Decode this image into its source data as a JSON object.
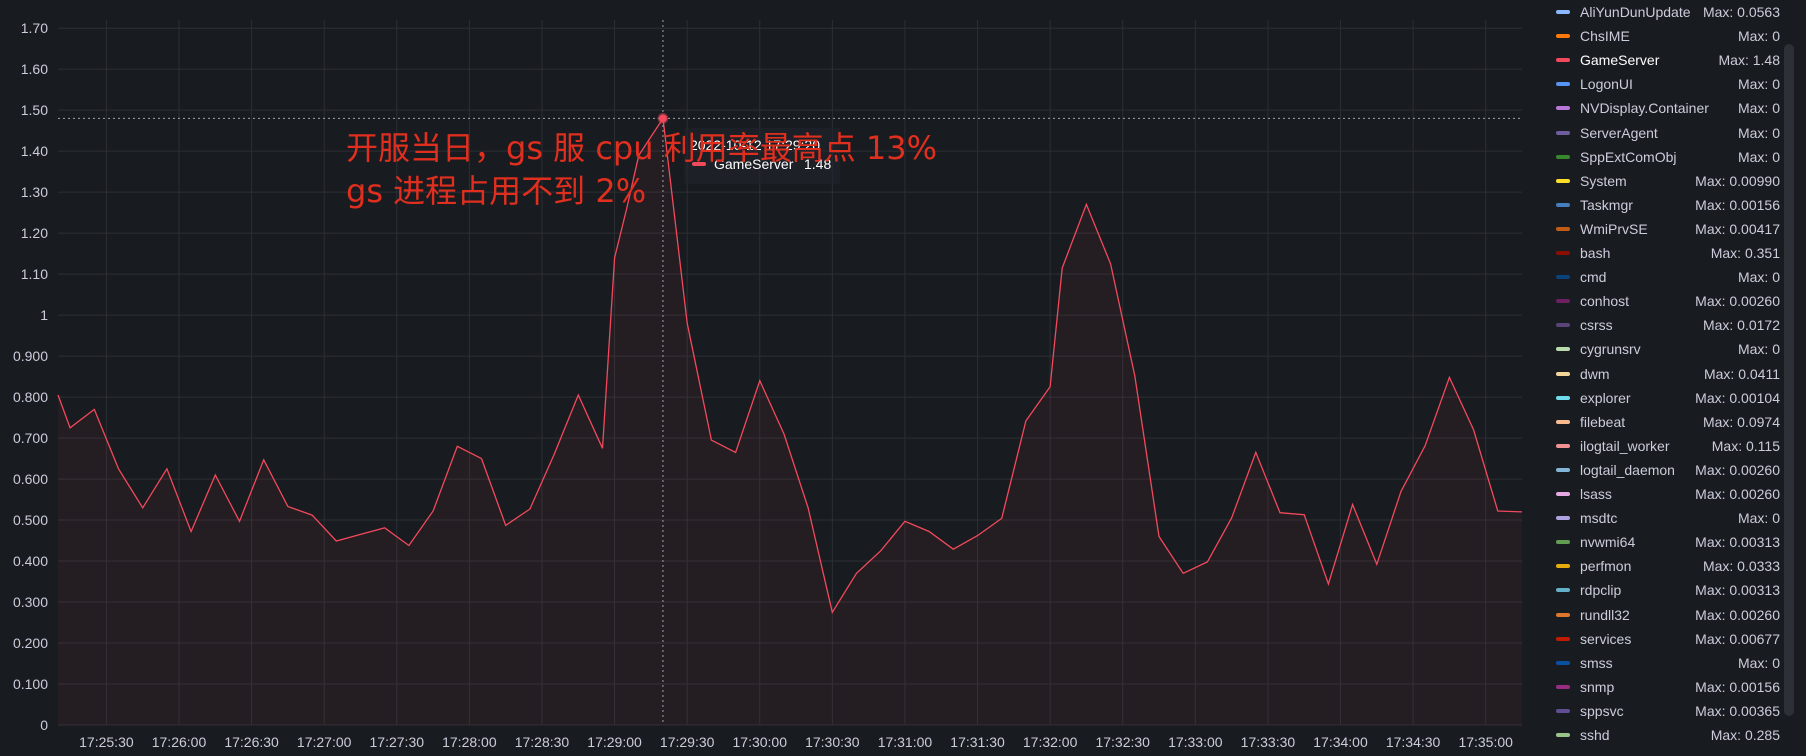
{
  "chart_data": {
    "type": "line",
    "y_ticks": [
      "0",
      "0.100",
      "0.200",
      "0.300",
      "0.400",
      "0.500",
      "0.600",
      "0.700",
      "0.800",
      "0.900",
      "1",
      "1.10",
      "1.20",
      "1.30",
      "1.40",
      "1.50",
      "1.60",
      "1.70"
    ],
    "ylim": [
      0,
      1.72
    ],
    "x_ticks": [
      "17:25:30",
      "17:26:00",
      "17:26:30",
      "17:27:00",
      "17:27:30",
      "17:28:00",
      "17:28:30",
      "17:29:00",
      "17:29:30",
      "17:30:00",
      "17:30:30",
      "17:31:00",
      "17:31:30",
      "17:32:00",
      "17:32:30",
      "17:33:00",
      "17:33:30",
      "17:34:00",
      "17:34:30",
      "17:35:00"
    ],
    "x_range": [
      "17:25:10",
      "17:35:15"
    ],
    "grid": true,
    "legend_position": "right",
    "series": [
      {
        "name": "GameServer",
        "color": "#f2495c",
        "x": [
          "17:25:10",
          "17:25:15",
          "17:25:25",
          "17:25:35",
          "17:25:45",
          "17:25:55",
          "17:26:05",
          "17:26:15",
          "17:26:25",
          "17:26:35",
          "17:26:45",
          "17:26:55",
          "17:27:05",
          "17:27:15",
          "17:27:25",
          "17:27:35",
          "17:27:45",
          "17:27:55",
          "17:28:05",
          "17:28:15",
          "17:28:25",
          "17:28:35",
          "17:28:45",
          "17:28:55",
          "17:29:00",
          "17:29:05",
          "17:29:10",
          "17:29:20",
          "17:29:30",
          "17:29:40",
          "17:29:50",
          "17:30:00",
          "17:30:10",
          "17:30:20",
          "17:30:30",
          "17:30:40",
          "17:30:50",
          "17:31:00",
          "17:31:10",
          "17:31:20",
          "17:31:30",
          "17:31:40",
          "17:31:50",
          "17:32:00",
          "17:32:05",
          "17:32:15",
          "17:32:25",
          "17:32:35",
          "17:32:45",
          "17:32:55",
          "17:33:05",
          "17:33:15",
          "17:33:25",
          "17:33:35",
          "17:33:45",
          "17:33:55",
          "17:34:05",
          "17:34:15",
          "17:34:25",
          "17:34:35",
          "17:34:45",
          "17:34:55",
          "17:35:05",
          "17:35:15"
        ],
        "y": [
          0.805,
          0.725,
          0.77,
          0.625,
          0.53,
          0.625,
          0.472,
          0.61,
          0.497,
          0.647,
          0.533,
          0.512,
          0.449,
          0.465,
          0.481,
          0.438,
          0.522,
          0.68,
          0.65,
          0.487,
          0.527,
          0.66,
          0.805,
          0.675,
          1.14,
          1.26,
          1.39,
          1.48,
          0.98,
          0.695,
          0.665,
          0.84,
          0.71,
          0.53,
          0.275,
          0.37,
          0.425,
          0.497,
          0.472,
          0.429,
          0.462,
          0.504,
          0.742,
          0.825,
          1.115,
          1.27,
          1.125,
          0.852,
          0.46,
          0.37,
          0.398,
          0.505,
          0.665,
          0.518,
          0.513,
          0.344,
          0.538,
          0.392,
          0.57,
          0.682,
          0.848,
          0.72,
          0.522,
          0.52
        ]
      }
    ]
  },
  "hover": {
    "time": "2022-10-12 17:29:20",
    "time_value": "17:29:20",
    "series": "GameServer",
    "value": "1.48",
    "value_num": 1.48
  },
  "annotation": {
    "line1": "开服当日，gs 服 cpu 利用率最高点 13%",
    "line2": "gs 进程占用不到 2%"
  },
  "legend": [
    {
      "name": "AliYunDunUpdate",
      "max": "Max: 0.0563",
      "color": "#8ab8ff"
    },
    {
      "name": "ChsIME",
      "max": "Max: 0",
      "color": "#ff780a"
    },
    {
      "name": "GameServer",
      "max": "Max: 1.48",
      "color": "#f2495c",
      "active": true
    },
    {
      "name": "LogonUI",
      "max": "Max: 0",
      "color": "#5794f2"
    },
    {
      "name": "NVDisplay.Container",
      "max": "Max: 0",
      "color": "#b877d9"
    },
    {
      "name": "ServerAgent",
      "max": "Max: 0",
      "color": "#705da0"
    },
    {
      "name": "SppExtComObj",
      "max": "Max: 0",
      "color": "#37872d"
    },
    {
      "name": "System",
      "max": "Max: 0.00990",
      "color": "#fade2a"
    },
    {
      "name": "Taskmgr",
      "max": "Max: 0.00156",
      "color": "#447ebc"
    },
    {
      "name": "WmiPrvSE",
      "max": "Max: 0.00417",
      "color": "#c15c17"
    },
    {
      "name": "bash",
      "max": "Max: 0.351",
      "color": "#890f02"
    },
    {
      "name": "cmd",
      "max": "Max: 0",
      "color": "#0a437c"
    },
    {
      "name": "conhost",
      "max": "Max: 0.00260",
      "color": "#6d1f62"
    },
    {
      "name": "csrss",
      "max": "Max: 0.0172",
      "color": "#584477"
    },
    {
      "name": "cygrunsrv",
      "max": "Max: 0",
      "color": "#b7dbab"
    },
    {
      "name": "dwm",
      "max": "Max: 0.0411",
      "color": "#f4d598"
    },
    {
      "name": "explorer",
      "max": "Max: 0.00104",
      "color": "#70dbed"
    },
    {
      "name": "filebeat",
      "max": "Max: 0.0974",
      "color": "#f9ba8f"
    },
    {
      "name": "ilogtail_worker",
      "max": "Max: 0.115",
      "color": "#f29191"
    },
    {
      "name": "logtail_daemon",
      "max": "Max: 0.00260",
      "color": "#82b5d8"
    },
    {
      "name": "lsass",
      "max": "Max: 0.00260",
      "color": "#e5a8e2"
    },
    {
      "name": "msdtc",
      "max": "Max: 0",
      "color": "#aea2e0"
    },
    {
      "name": "nvwmi64",
      "max": "Max: 0.00313",
      "color": "#629e51"
    },
    {
      "name": "perfmon",
      "max": "Max: 0.0333",
      "color": "#e5ac0e"
    },
    {
      "name": "rdpclip",
      "max": "Max: 0.00313",
      "color": "#64b0c8"
    },
    {
      "name": "rundll32",
      "max": "Max: 0.00260",
      "color": "#e0752d"
    },
    {
      "name": "services",
      "max": "Max: 0.00677",
      "color": "#bf1b00"
    },
    {
      "name": "smss",
      "max": "Max: 0",
      "color": "#0a50a1"
    },
    {
      "name": "snmp",
      "max": "Max: 0.00156",
      "color": "#962d82"
    },
    {
      "name": "sppsvc",
      "max": "Max: 0.00365",
      "color": "#614d93"
    },
    {
      "name": "sshd",
      "max": "Max: 0.285",
      "color": "#9ac48a"
    }
  ]
}
